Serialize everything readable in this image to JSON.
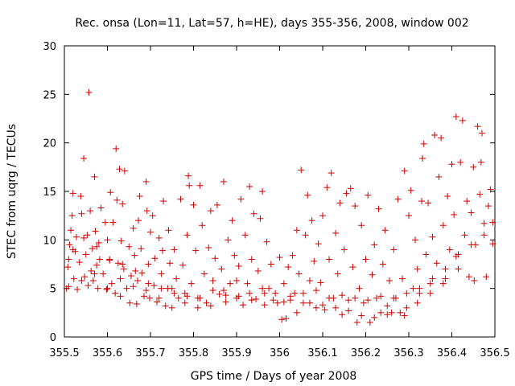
{
  "chart_data": {
    "type": "scatter",
    "title": "Rec. onsa (Lon=11, Lat=57, h=HE), days 355-356, 2008, window 002",
    "xlabel": "GPS time / Days of year 2008",
    "ylabel": "STEC from uqrg / TECUs",
    "xlim": [
      355.5,
      356.5
    ],
    "ylim": [
      0,
      30
    ],
    "x_ticks": [
      "355.5",
      "355.6",
      "355.7",
      "355.8",
      "355.9",
      "356",
      "356.1",
      "356.2",
      "356.3",
      "356.4",
      "356.5"
    ],
    "y_ticks": [
      "0",
      "5",
      "10",
      "15",
      "20",
      "25",
      "30"
    ],
    "marker": "plus",
    "color": "#cc0000",
    "grid": false,
    "points": [
      [
        355.505,
        5.0
      ],
      [
        355.508,
        7.2
      ],
      [
        355.51,
        8.0
      ],
      [
        355.512,
        9.5
      ],
      [
        355.515,
        11.0
      ],
      [
        355.518,
        12.5
      ],
      [
        355.52,
        14.8
      ],
      [
        355.522,
        6.0
      ],
      [
        355.525,
        8.8
      ],
      [
        355.528,
        10.3
      ],
      [
        355.53,
        4.9
      ],
      [
        355.535,
        7.7
      ],
      [
        355.538,
        14.5
      ],
      [
        355.54,
        12.7
      ],
      [
        355.545,
        18.4
      ],
      [
        355.547,
        6.2
      ],
      [
        355.55,
        8.5
      ],
      [
        355.553,
        10.5
      ],
      [
        355.555,
        5.3
      ],
      [
        355.557,
        25.2
      ],
      [
        355.56,
        13.0
      ],
      [
        355.562,
        6.8
      ],
      [
        355.565,
        9.1
      ],
      [
        355.567,
        5.8
      ],
      [
        355.57,
        16.5
      ],
      [
        355.572,
        10.9
      ],
      [
        355.575,
        7.4
      ],
      [
        355.578,
        5.0
      ],
      [
        355.58,
        9.7
      ],
      [
        355.582,
        8.0
      ],
      [
        355.585,
        13.3
      ],
      [
        355.59,
        6.5
      ],
      [
        355.595,
        11.8
      ],
      [
        355.598,
        4.9
      ],
      [
        355.6,
        10.0
      ],
      [
        355.605,
        7.9
      ],
      [
        355.607,
        14.9
      ],
      [
        355.61,
        5.5
      ],
      [
        355.613,
        11.8
      ],
      [
        355.618,
        4.5
      ],
      [
        355.62,
        19.4
      ],
      [
        355.622,
        14.1
      ],
      [
        355.625,
        7.6
      ],
      [
        355.628,
        17.3
      ],
      [
        355.63,
        4.2
      ],
      [
        355.632,
        9.9
      ],
      [
        355.635,
        13.7
      ],
      [
        355.638,
        7.0
      ],
      [
        355.64,
        17.1
      ],
      [
        355.645,
        5.0
      ],
      [
        355.65,
        9.3
      ],
      [
        355.652,
        3.5
      ],
      [
        355.655,
        6.3
      ],
      [
        355.66,
        11.2
      ],
      [
        355.663,
        8.4
      ],
      [
        355.668,
        3.4
      ],
      [
        355.67,
        5.8
      ],
      [
        355.672,
        12.0
      ],
      [
        355.675,
        14.5
      ],
      [
        355.678,
        9.1
      ],
      [
        355.68,
        6.6
      ],
      [
        355.685,
        4.2
      ],
      [
        355.69,
        16.0
      ],
      [
        355.692,
        13.0
      ],
      [
        355.695,
        7.5
      ],
      [
        355.698,
        4.0
      ],
      [
        355.7,
        10.8
      ],
      [
        355.705,
        12.5
      ],
      [
        355.708,
        5.3
      ],
      [
        355.71,
        8.1
      ],
      [
        355.715,
        3.6
      ],
      [
        355.72,
        10.2
      ],
      [
        355.725,
        6.5
      ],
      [
        355.728,
        8.9
      ],
      [
        355.73,
        14.0
      ],
      [
        355.735,
        3.2
      ],
      [
        355.74,
        5.0
      ],
      [
        355.742,
        11.0
      ],
      [
        355.745,
        7.6
      ],
      [
        355.75,
        3.0
      ],
      [
        355.755,
        9.0
      ],
      [
        355.76,
        6.0
      ],
      [
        355.765,
        4.0
      ],
      [
        355.77,
        14.2
      ],
      [
        355.775,
        7.4
      ],
      [
        355.78,
        3.5
      ],
      [
        355.785,
        10.5
      ],
      [
        355.788,
        16.6
      ],
      [
        355.79,
        15.6
      ],
      [
        355.795,
        5.5
      ],
      [
        355.8,
        13.6
      ],
      [
        355.805,
        8.9
      ],
      [
        355.81,
        4.0
      ],
      [
        355.815,
        15.6
      ],
      [
        355.82,
        11.5
      ],
      [
        355.825,
        6.5
      ],
      [
        355.83,
        3.5
      ],
      [
        355.835,
        9.2
      ],
      [
        355.84,
        13.0
      ],
      [
        355.845,
        5.8
      ],
      [
        355.85,
        8.1
      ],
      [
        355.855,
        13.6
      ],
      [
        355.86,
        4.4
      ],
      [
        355.865,
        7.0
      ],
      [
        355.87,
        16.0
      ],
      [
        355.875,
        3.6
      ],
      [
        355.88,
        10.0
      ],
      [
        355.885,
        5.5
      ],
      [
        355.89,
        12.0
      ],
      [
        355.895,
        8.4
      ],
      [
        355.9,
        4.0
      ],
      [
        355.905,
        7.3
      ],
      [
        355.91,
        14.2
      ],
      [
        355.915,
        3.3
      ],
      [
        355.92,
        10.5
      ],
      [
        355.925,
        5.5
      ],
      [
        355.93,
        15.5
      ],
      [
        355.935,
        8.0
      ],
      [
        355.94,
        12.7
      ],
      [
        355.945,
        3.9
      ],
      [
        355.95,
        6.8
      ],
      [
        355.955,
        12.2
      ],
      [
        355.96,
        15.0
      ],
      [
        355.965,
        3.3
      ],
      [
        355.97,
        9.8
      ],
      [
        355.975,
        5.0
      ],
      [
        355.98,
        7.5
      ],
      [
        355.985,
        3.8
      ],
      [
        356.0,
        8.2
      ],
      [
        356.005,
        1.8
      ],
      [
        356.01,
        5.5
      ],
      [
        356.015,
        1.9
      ],
      [
        356.02,
        7.2
      ],
      [
        356.025,
        3.8
      ],
      [
        356.03,
        8.4
      ],
      [
        356.035,
        4.5
      ],
      [
        356.04,
        11.0
      ],
      [
        356.045,
        6.5
      ],
      [
        356.05,
        17.2
      ],
      [
        356.055,
        3.5
      ],
      [
        356.06,
        10.5
      ],
      [
        356.065,
        14.6
      ],
      [
        356.07,
        5.8
      ],
      [
        356.075,
        12.0
      ],
      [
        356.08,
        7.8
      ],
      [
        356.085,
        3.0
      ],
      [
        356.09,
        9.6
      ],
      [
        356.095,
        5.6
      ],
      [
        356.1,
        12.5
      ],
      [
        356.105,
        2.8
      ],
      [
        356.11,
        15.4
      ],
      [
        356.115,
        8.0
      ],
      [
        356.12,
        16.9
      ],
      [
        356.125,
        4.0
      ],
      [
        356.13,
        10.7
      ],
      [
        356.135,
        6.5
      ],
      [
        356.14,
        13.8
      ],
      [
        356.145,
        2.3
      ],
      [
        356.15,
        9.0
      ],
      [
        356.155,
        14.8
      ],
      [
        356.16,
        3.8
      ],
      [
        356.165,
        15.3
      ],
      [
        356.17,
        7.2
      ],
      [
        356.175,
        13.5
      ],
      [
        356.18,
        1.5
      ],
      [
        356.185,
        5.0
      ],
      [
        356.19,
        11.5
      ],
      [
        356.195,
        3.5
      ],
      [
        356.2,
        8.0
      ],
      [
        356.205,
        14.6
      ],
      [
        356.21,
        1.5
      ],
      [
        356.215,
        6.4
      ],
      [
        356.22,
        9.5
      ],
      [
        356.225,
        4.0
      ],
      [
        356.23,
        13.2
      ],
      [
        356.235,
        2.5
      ],
      [
        356.24,
        7.5
      ],
      [
        356.245,
        11.0
      ],
      [
        356.25,
        3.2
      ],
      [
        356.255,
        5.8
      ],
      [
        356.26,
        2.5
      ],
      [
        356.265,
        9.0
      ],
      [
        356.27,
        4.0
      ],
      [
        356.275,
        14.2
      ],
      [
        356.28,
        2.5
      ],
      [
        356.285,
        6.0
      ],
      [
        356.29,
        17.1
      ],
      [
        356.295,
        3.0
      ],
      [
        356.3,
        12.5
      ],
      [
        356.305,
        15.1
      ],
      [
        356.31,
        5.0
      ],
      [
        356.315,
        10.0
      ],
      [
        356.32,
        7.0
      ],
      [
        356.325,
        4.5
      ],
      [
        356.33,
        14.0
      ],
      [
        356.332,
        18.4
      ],
      [
        356.335,
        19.9
      ],
      [
        356.34,
        8.5
      ],
      [
        356.345,
        13.8
      ],
      [
        356.35,
        5.5
      ],
      [
        356.355,
        10.3
      ],
      [
        356.36,
        20.8
      ],
      [
        356.365,
        7.6
      ],
      [
        356.37,
        16.5
      ],
      [
        356.375,
        20.5
      ],
      [
        356.38,
        11.5
      ],
      [
        356.385,
        6.0
      ],
      [
        356.39,
        14.5
      ],
      [
        356.395,
        9.0
      ],
      [
        356.4,
        17.8
      ],
      [
        356.405,
        12.6
      ],
      [
        356.41,
        22.7
      ],
      [
        356.415,
        7.0
      ],
      [
        356.42,
        18.0
      ],
      [
        356.425,
        22.3
      ],
      [
        356.43,
        10.5
      ],
      [
        356.435,
        14.0
      ],
      [
        356.44,
        6.2
      ],
      [
        356.445,
        12.8
      ],
      [
        356.45,
        17.5
      ],
      [
        356.455,
        9.5
      ],
      [
        356.46,
        21.7
      ],
      [
        356.465,
        14.7
      ],
      [
        356.47,
        21.0
      ],
      [
        356.475,
        11.7
      ],
      [
        356.48,
        6.2
      ],
      [
        356.485,
        13.5
      ],
      [
        356.49,
        15.2
      ],
      [
        356.495,
        9.6
      ],
      [
        356.468,
        18.0
      ],
      [
        356.452,
        5.8
      ],
      [
        356.41,
        8.3
      ],
      [
        356.38,
        5.5
      ],
      [
        356.35,
        4.5
      ],
      [
        356.32,
        3.5
      ],
      [
        356.29,
        2.2
      ],
      [
        356.25,
        2.3
      ],
      [
        356.22,
        2.0
      ],
      [
        356.19,
        2.2
      ],
      [
        356.16,
        2.7
      ],
      [
        356.13,
        3.0
      ],
      [
        356.1,
        3.3
      ],
      [
        356.07,
        3.5
      ],
      [
        356.04,
        2.5
      ],
      [
        356.01,
        3.6
      ],
      [
        355.99,
        4.5
      ],
      [
        355.96,
        5.0
      ],
      [
        355.93,
        4.5
      ],
      [
        355.9,
        5.8
      ],
      [
        355.87,
        4.8
      ],
      [
        355.84,
        3.2
      ],
      [
        355.81,
        3.0
      ],
      [
        355.78,
        4.5
      ],
      [
        355.75,
        5.0
      ],
      [
        355.72,
        4.0
      ],
      [
        355.69,
        4.8
      ],
      [
        355.66,
        5.2
      ],
      [
        355.63,
        6.0
      ],
      [
        355.6,
        5.0
      ],
      [
        355.57,
        6.5
      ],
      [
        355.54,
        5.8
      ],
      [
        355.51,
        5.2
      ],
      [
        355.52,
        9.0
      ],
      [
        355.545,
        10.2
      ],
      [
        355.575,
        9.3
      ],
      [
        355.605,
        8.0
      ],
      [
        355.635,
        7.5
      ],
      [
        355.665,
        6.8
      ],
      [
        355.695,
        5.5
      ],
      [
        355.725,
        5.0
      ],
      [
        355.755,
        4.5
      ],
      [
        355.785,
        4.2
      ],
      [
        355.815,
        4.0
      ],
      [
        355.845,
        4.8
      ],
      [
        355.875,
        4.3
      ],
      [
        355.905,
        4.2
      ],
      [
        355.935,
        3.8
      ],
      [
        355.965,
        4.5
      ],
      [
        355.995,
        3.5
      ],
      [
        356.025,
        4.2
      ],
      [
        356.055,
        4.5
      ],
      [
        356.085,
        4.8
      ],
      [
        356.115,
        4.0
      ],
      [
        356.145,
        4.3
      ],
      [
        356.175,
        4.0
      ],
      [
        356.205,
        3.8
      ],
      [
        356.235,
        4.2
      ],
      [
        356.265,
        4.0
      ],
      [
        356.295,
        4.5
      ],
      [
        356.325,
        5.0
      ],
      [
        356.355,
        6.0
      ],
      [
        356.385,
        7.0
      ],
      [
        356.415,
        8.5
      ],
      [
        356.445,
        9.5
      ],
      [
        356.475,
        10.5
      ],
      [
        356.495,
        11.8
      ]
    ]
  }
}
